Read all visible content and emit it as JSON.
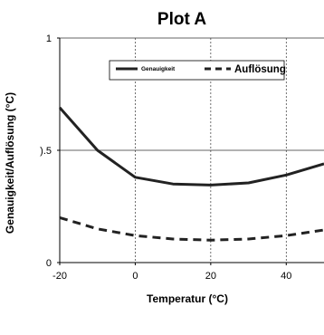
{
  "chart_data": {
    "type": "line",
    "title": "Plot A",
    "xlabel": "Temperatur (°C)",
    "ylabel": "Genauigkeit/Auflösung (°C)",
    "x": [
      -20,
      -10,
      0,
      10,
      20,
      30,
      40,
      50
    ],
    "xlim": [
      -20,
      50
    ],
    "ylim": [
      0,
      1
    ],
    "x_ticks": [
      -20,
      0,
      20,
      40
    ],
    "x_tick_labels": [
      "-20",
      "0",
      "20",
      "40"
    ],
    "y_ticks": [
      0,
      0.5,
      1
    ],
    "y_tick_labels": [
      "0",
      ").5",
      "1"
    ],
    "grid": {
      "vertical": "dashed",
      "horizontal": "solid"
    },
    "legend_position": "top",
    "series": [
      {
        "name": "Genauigkeit",
        "line_style": "solid",
        "color": "#222222",
        "values": [
          0.69,
          0.5,
          0.38,
          0.35,
          0.345,
          0.355,
          0.39,
          0.44
        ]
      },
      {
        "name": "Auflösung",
        "line_style": "dashed",
        "color": "#222222",
        "values": [
          0.2,
          0.15,
          0.12,
          0.105,
          0.1,
          0.105,
          0.12,
          0.145
        ]
      }
    ]
  }
}
